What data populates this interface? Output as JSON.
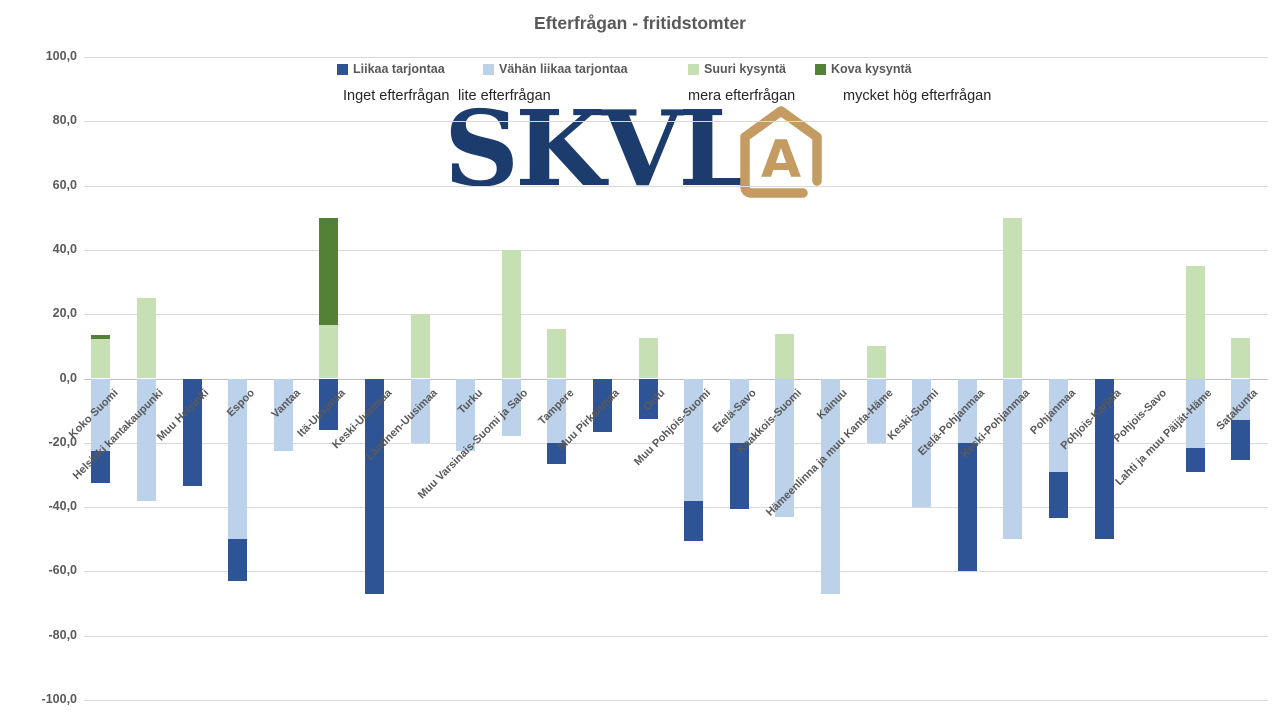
{
  "title": "Efterfrågan - fritidstomter",
  "legend": {
    "items": [
      {
        "label": "Liikaa tarjontaa",
        "sublabel": "Inget efterfrågan",
        "color": "#2f5496"
      },
      {
        "label": "Vähän liikaa tarjontaa",
        "sublabel": "lite efterfrågan",
        "color": "#bcd2ea"
      },
      {
        "label": "Suuri kysyntä",
        "sublabel": "mera efterfrågan",
        "color": "#c6e0b4"
      },
      {
        "label": "Kova kysyntä",
        "sublabel": "mycket hög efterfrågan",
        "color": "#538135"
      }
    ]
  },
  "logo": {
    "text": "SKVL",
    "icon_letter": "A",
    "navy": "#1d3c6e",
    "gold": "#c49b60"
  },
  "y_axis": {
    "tick_labels": [
      "100,0",
      "80,0",
      "60,0",
      "40,0",
      "20,0",
      "0,0",
      "-20,0",
      "-40,0",
      "-60,0",
      "-80,0",
      "-100,0"
    ]
  },
  "chart_data": {
    "type": "bar",
    "stacked": true,
    "title": "Efterfrågan - fritidstomter",
    "ylim": [
      -100,
      100
    ],
    "y_step": 20,
    "grid": true,
    "legend_position": "top",
    "categories": [
      "Koko Suomi",
      "Helsinki kantakaupunki",
      "Muu Helsinki",
      "Espoo",
      "Vantaa",
      "Itä-Uusimaa",
      "Keski-Uusimaa",
      "Läntinen-Uusimaa",
      "Turku",
      "Muu Varsinais-Suomi ja Salo",
      "Tampere",
      "Muu Pirkanmaa",
      "Oulu",
      "Muu Pohjois-Suomi",
      "Etelä-Savo",
      "Kaakkois-Suomi",
      "Kainuu",
      "Hämeenlinna ja muu Kanta-Häme",
      "Keski-Suomi",
      "Etelä-Pohjanmaa",
      "Keski-Pohjanmaa",
      "Pohjanmaa",
      "Pohjois-Karjala",
      "Pohjois-Savo",
      "Lahti ja muu Päijät-Häme",
      "Satakunta"
    ],
    "series": [
      {
        "name": "Liikaa tarjontaa",
        "color": "#2f5496",
        "values": [
          -10,
          0,
          -33.3,
          -13,
          0,
          -16,
          -67,
          0,
          0,
          0,
          -6.7,
          -16.7,
          -12.5,
          -12.5,
          -20.5,
          0,
          0,
          0,
          0,
          -40,
          0,
          -14.5,
          -50,
          0,
          -7.5,
          -12.5
        ]
      },
      {
        "name": "Vähän liikaa tarjontaa",
        "color": "#bcd2ea",
        "values": [
          -22.5,
          -38,
          0,
          -50,
          -22.5,
          0,
          0,
          -20,
          -22.5,
          -18,
          -20,
          0,
          0,
          -38,
          -20,
          -43,
          -67,
          -20,
          -40,
          -20,
          -50,
          -29,
          0,
          0,
          -21.5,
          -13
        ]
      },
      {
        "name": "Suuri kysyntä",
        "color": "#c6e0b4",
        "values": [
          12.2,
          25,
          0,
          0,
          0,
          16.7,
          0,
          20,
          0,
          40,
          15.5,
          0,
          12.5,
          0,
          0,
          14,
          0,
          10,
          0,
          0,
          50,
          0,
          0,
          0,
          35,
          12.5
        ]
      },
      {
        "name": "Kova kysyntä",
        "color": "#538135",
        "values": [
          1.3,
          0,
          0,
          0,
          0,
          33.3,
          0,
          0,
          0,
          0,
          0,
          0,
          0,
          0,
          0,
          0,
          0,
          0,
          0,
          0,
          0,
          0,
          0,
          0,
          0,
          0
        ]
      }
    ]
  }
}
